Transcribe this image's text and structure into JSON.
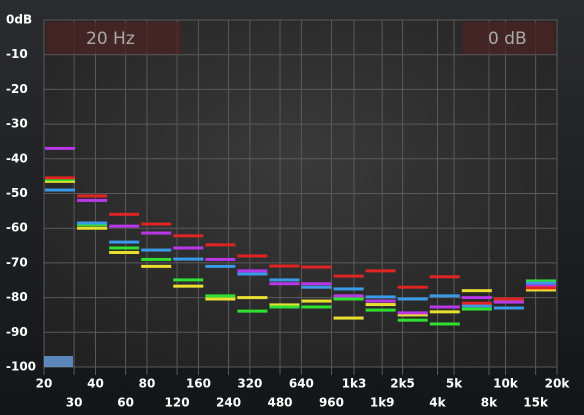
{
  "chart_data": {
    "type": "band-levels",
    "annotations": [
      "20 Hz",
      "0 dB"
    ],
    "xscale": "log",
    "xlim": [
      20,
      20000
    ],
    "xticks": [
      20,
      30,
      40,
      60,
      80,
      120,
      160,
      240,
      320,
      480,
      640,
      960,
      {
        "value": 1300,
        "label": "1k3"
      },
      {
        "value": 1900,
        "label": "1k9"
      },
      {
        "value": 2500,
        "label": "2k5"
      },
      {
        "value": 4000,
        "label": "4k"
      },
      {
        "value": 5000,
        "label": "5k"
      },
      {
        "value": 8000,
        "label": "8k"
      },
      {
        "value": 10000,
        "label": "10k"
      },
      {
        "value": 15000,
        "label": "15k"
      },
      {
        "value": 20000,
        "label": "20k"
      }
    ],
    "ylim": [
      -100,
      0
    ],
    "yticks": [
      {
        "value": 0,
        "label": "0dB"
      },
      -10,
      -20,
      -30,
      -40,
      -50,
      -60,
      -70,
      -80,
      -90,
      -100
    ],
    "grid": true,
    "categories": [
      null,
      null,
      null,
      null,
      null,
      null,
      null,
      null,
      null,
      null,
      null,
      null,
      null,
      null,
      null,
      null
    ],
    "series": [
      {
        "color": "#e8e030",
        "values": [
          -46.5,
          -60,
          -67,
          -71,
          -76.7,
          -80.4,
          -80,
          -82.1,
          -81,
          -85.9,
          -82,
          -85,
          -84.1,
          -78,
          -81,
          -77.8
        ]
      },
      {
        "color": "#30e030",
        "values": [
          -46,
          -59,
          -65.7,
          -69,
          -74.9,
          -79.5,
          -83.9,
          -82.7,
          -82.7,
          -80.4,
          -83.6,
          -86.5,
          -87.6,
          -83.3,
          -81,
          -75.2
        ]
      },
      {
        "color": "#3a9ae8",
        "values": [
          -49,
          -58.5,
          -64,
          -66.3,
          -68.9,
          -71,
          -73.2,
          -74.9,
          -77,
          -77.5,
          -79.8,
          -80.4,
          -79.5,
          -82.4,
          -83,
          -75.8
        ]
      },
      {
        "color": "#b838e8",
        "values": [
          -37,
          -52,
          -59.4,
          -61.4,
          -65.7,
          -69,
          -72.3,
          -76,
          -76,
          -79.5,
          -81,
          -84.4,
          -82.7,
          -80,
          -81.3,
          -76.7
        ]
      },
      {
        "color": "#e02424",
        "values": [
          -45.5,
          -50.7,
          -56,
          -58.8,
          -62.2,
          -64.8,
          -68,
          -70.9,
          -71.2,
          -73.8,
          -72.3,
          -77,
          -74,
          -81.6,
          -80.4,
          -77.2
        ]
      }
    ]
  }
}
